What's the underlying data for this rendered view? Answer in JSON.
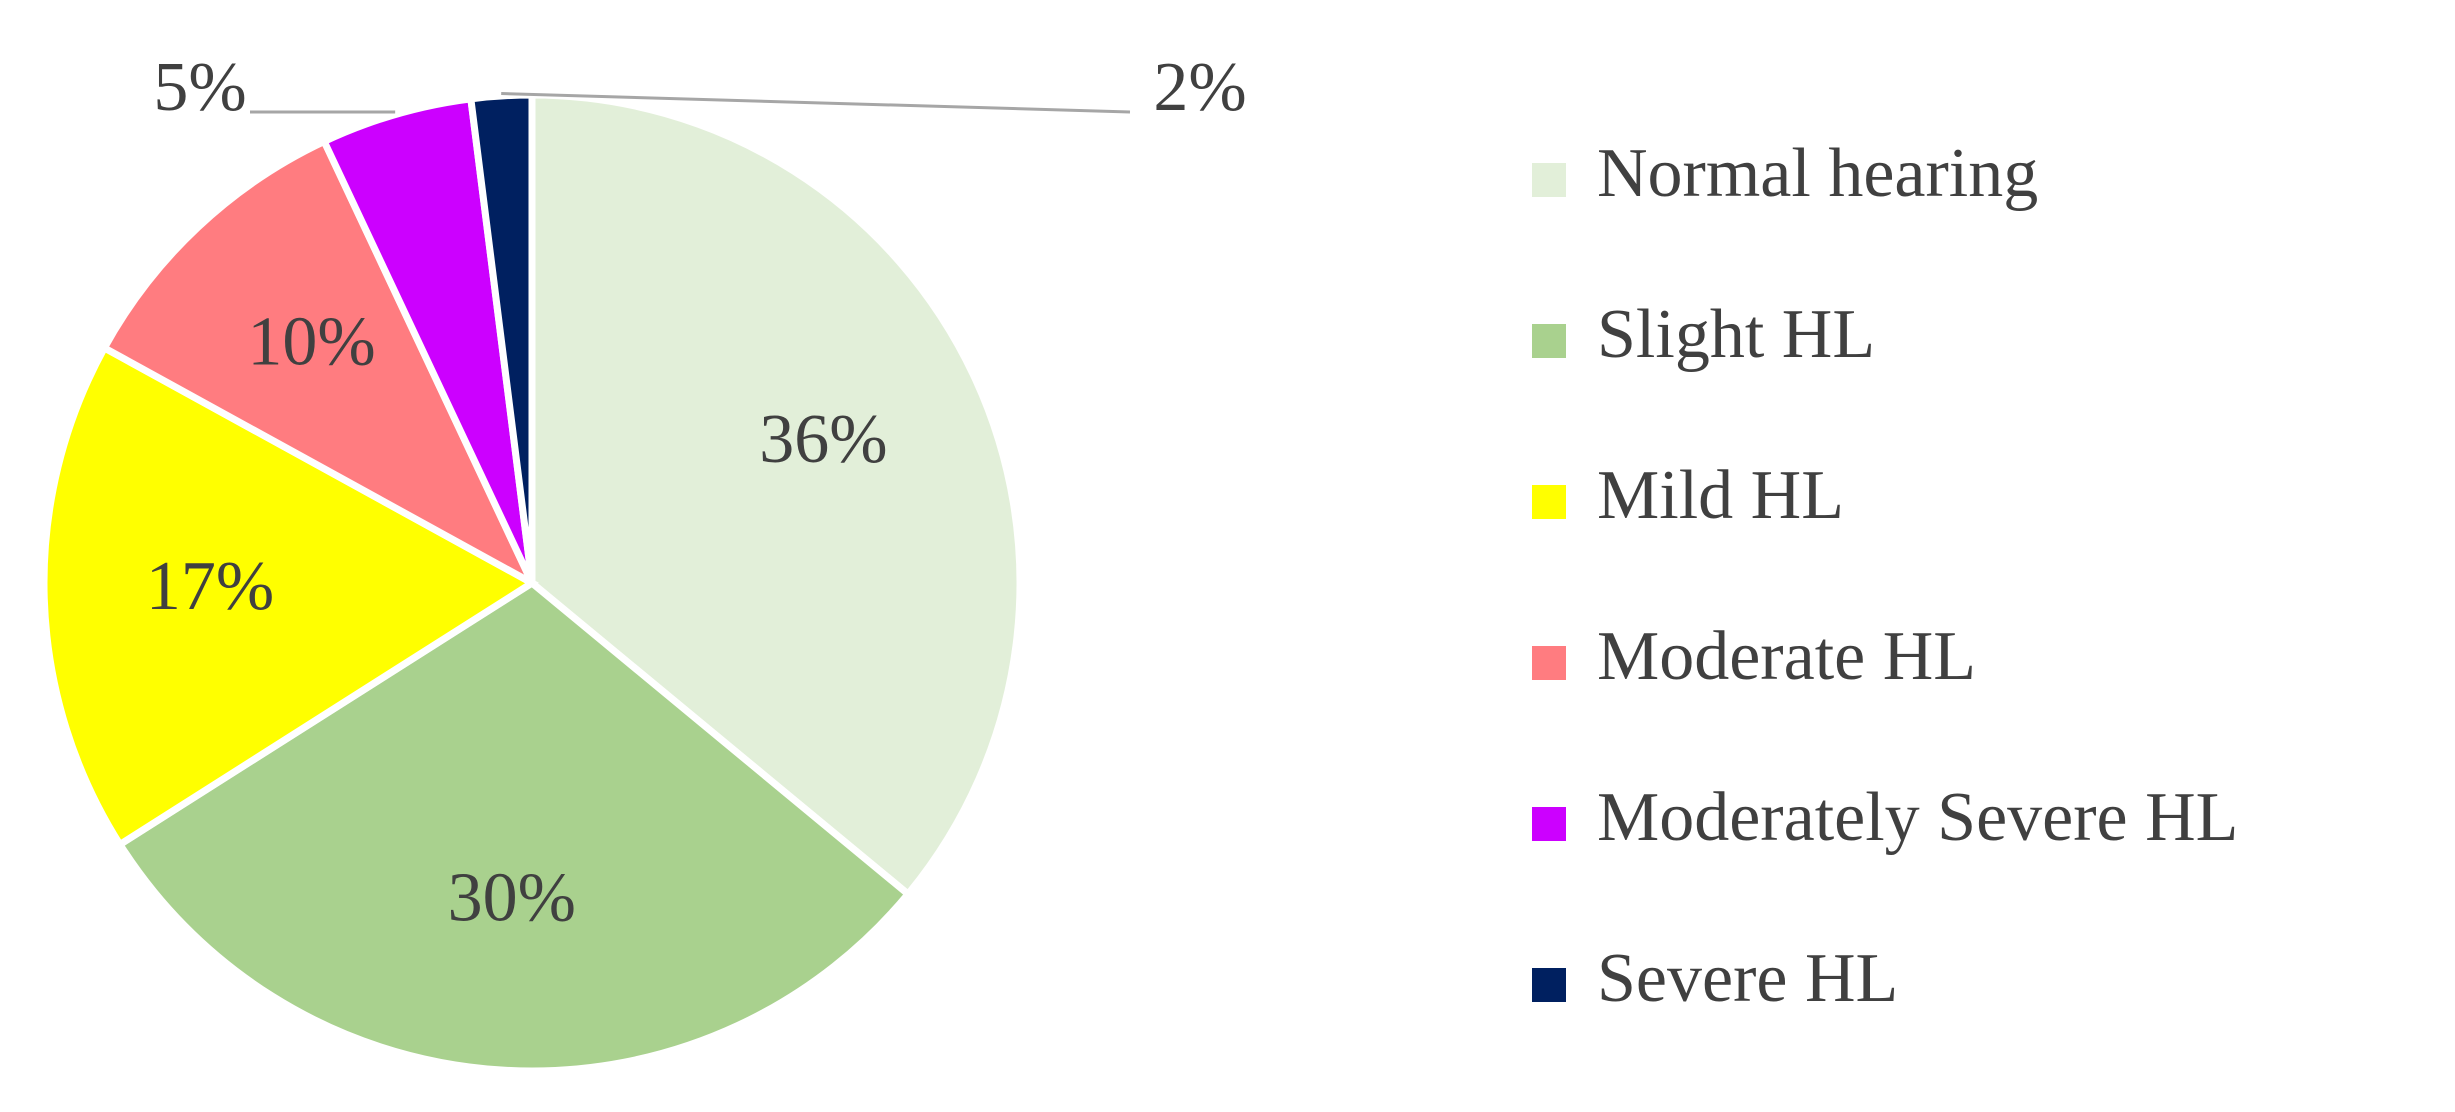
{
  "chart_data": {
    "type": "pie",
    "categories": [
      "Normal hearing",
      "Slight HL",
      "Mild HL",
      "Moderate HL",
      "Moderately Severe HL",
      "Severe HL"
    ],
    "values": [
      36,
      30,
      17,
      10,
      5,
      2
    ],
    "value_labels": [
      "36%",
      "30%",
      "17%",
      "10%",
      "5%",
      "2%"
    ],
    "colors": [
      "#e2efd9",
      "#a9d18e",
      "#ffff00",
      "#ff7c80",
      "#cc00ff",
      "#002060"
    ],
    "legend": "right"
  }
}
